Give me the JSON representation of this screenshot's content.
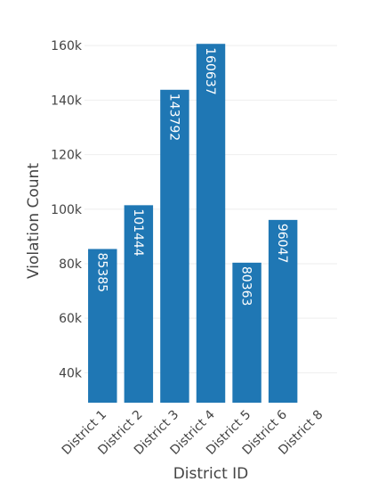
{
  "chart_data": {
    "type": "bar",
    "title": "",
    "xlabel": "District ID",
    "ylabel": "Violation Count",
    "categories": [
      "District 1",
      "District 2",
      "District 3",
      "District 4",
      "District 5",
      "District 6",
      "District 8"
    ],
    "values": [
      85385,
      101444,
      143792,
      160637,
      80363,
      96047,
      null
    ],
    "data_labels": [
      "85385",
      "101444",
      "143792",
      "160637",
      "80363",
      "96047",
      ""
    ],
    "ylim": [
      29000,
      163000
    ],
    "yticks": [
      40000,
      60000,
      80000,
      100000,
      120000,
      140000,
      160000
    ],
    "ytick_labels": [
      "40k",
      "60k",
      "80k",
      "100k",
      "120k",
      "140k",
      "160k"
    ],
    "grid": true,
    "legend": "none",
    "bar_color": "#1f77b4",
    "grid_color": "#eeeeee",
    "text_color": "#444444"
  }
}
